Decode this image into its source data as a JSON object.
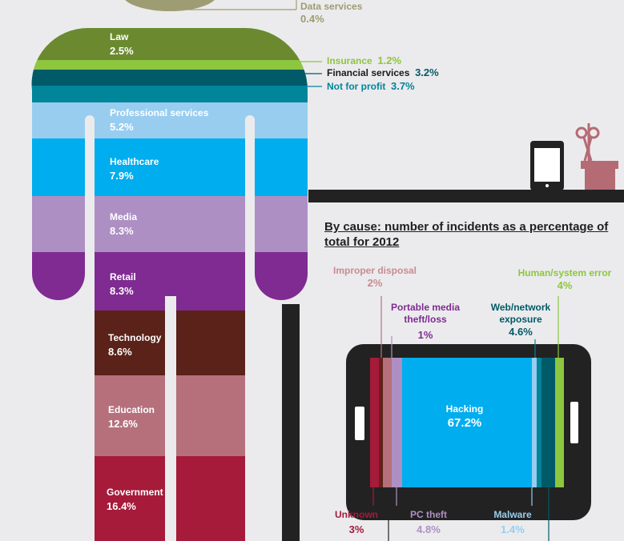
{
  "colors": {
    "background": "#ebebed",
    "dark": "#222222",
    "phone_icon": "#b56b74"
  },
  "industry_chart": {
    "type": "bar",
    "segments": [
      {
        "label": "Data services",
        "value": "0.4%",
        "color": "#9e9c72"
      },
      {
        "label": "Law",
        "value": "2.5%",
        "color": "#6b8a2f"
      },
      {
        "label": "Insurance",
        "value": "1.2%",
        "color": "#8dc63f"
      },
      {
        "label": "Financial services",
        "value": "3.2%",
        "color": "#005a67"
      },
      {
        "label": "Not for profit",
        "value": "3.7%",
        "color": "#00859b"
      },
      {
        "label": "Professional services",
        "value": "5.2%",
        "color": "#98cdef"
      },
      {
        "label": "Healthcare",
        "value": "7.9%",
        "color": "#00adef"
      },
      {
        "label": "Media",
        "value": "8.3%",
        "color": "#ad8fc4"
      },
      {
        "label": "Retail",
        "value": "8.3%",
        "color": "#7f2b91"
      },
      {
        "label": "Technology",
        "value": "8.6%",
        "color": "#5a2218"
      },
      {
        "label": "Education",
        "value": "12.6%",
        "color": "#b5707c"
      },
      {
        "label": "Government",
        "value": "16.4%",
        "color": "#a61a3a"
      }
    ]
  },
  "cause_chart": {
    "type": "bar",
    "title": "By cause: number of incidents as a percentage of total for 2012",
    "segments": [
      {
        "label": "Unknown",
        "value": "3%",
        "color": "#a61a3a"
      },
      {
        "label": "Improper disposal",
        "value": "2%",
        "color": "#5a2218"
      },
      {
        "label": "Portable media theft/loss",
        "value": "1%",
        "color": "#b5707c"
      },
      {
        "label": "PC theft",
        "value": "4.8%",
        "color": "#ad8fc4"
      },
      {
        "label": "Hacking",
        "value": "67.2%",
        "color": "#00adef"
      },
      {
        "label": "Malware",
        "value": "1.4%",
        "color": "#98cdef"
      },
      {
        "label": "Web/network exposure",
        "value": "4.6%",
        "color": "#00859b"
      },
      {
        "label": "",
        "value": "",
        "color": "#005a67"
      },
      {
        "label": "Human/system error",
        "value": "4%",
        "color": "#8dc63f"
      }
    ]
  }
}
